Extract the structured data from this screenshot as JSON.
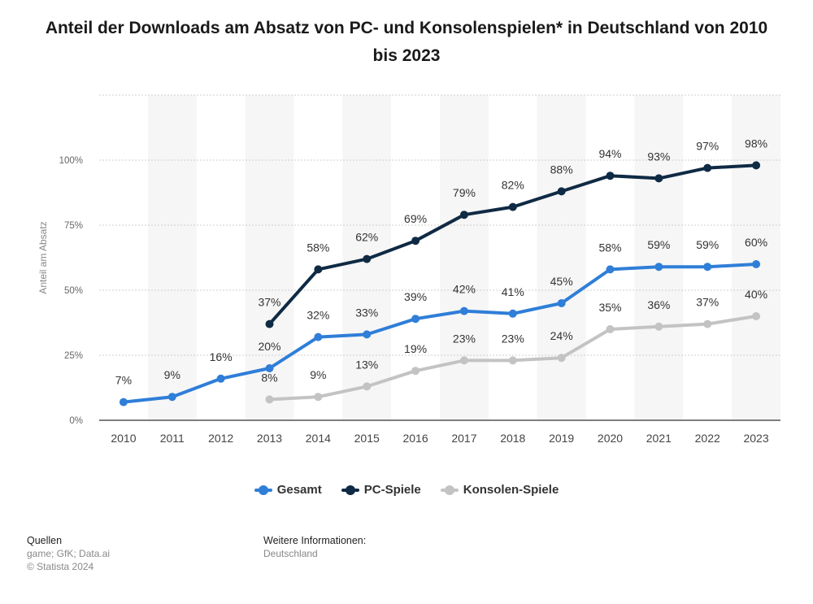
{
  "title": "Anteil der Downloads am Absatz von PC- und Konsolenspielen* in Deutschland von 2010 bis 2023",
  "colors": {
    "gesamt": "#2f7ed8",
    "pc": "#0f2a44",
    "konsolen": "#c3c3c3",
    "grid": "#cfcfcf",
    "band": "#f6f6f6"
  },
  "chart_data": {
    "type": "line",
    "title": "Anteil der Downloads am Absatz von PC- und Konsolenspielen* in Deutschland von 2010 bis 2023",
    "xlabel": "",
    "ylabel": "Anteil am Absatz",
    "ylim": [
      0,
      125
    ],
    "yticks": [
      0,
      25,
      50,
      75,
      100
    ],
    "ytick_labels": [
      "0%",
      "25%",
      "50%",
      "75%",
      "100%"
    ],
    "categories": [
      "2010",
      "2011",
      "2012",
      "2013",
      "2014",
      "2015",
      "2016",
      "2017",
      "2018",
      "2019",
      "2020",
      "2021",
      "2022",
      "2023"
    ],
    "series": [
      {
        "name": "Gesamt",
        "key": "gesamt",
        "values": [
          7,
          9,
          16,
          20,
          32,
          33,
          39,
          42,
          41,
          45,
          58,
          59,
          59,
          60
        ],
        "labels": [
          "7%",
          "9%",
          "16%",
          "20%",
          "32%",
          "33%",
          "39%",
          "42%",
          "41%",
          "45%",
          "58%",
          "59%",
          "59%",
          "60%"
        ]
      },
      {
        "name": "PC-Spiele",
        "key": "pc",
        "values": [
          null,
          null,
          null,
          37,
          58,
          62,
          69,
          79,
          82,
          88,
          94,
          93,
          97,
          98
        ],
        "labels": [
          null,
          null,
          null,
          "37%",
          "58%",
          "62%",
          "69%",
          "79%",
          "82%",
          "88%",
          "94%",
          "93%",
          "97%",
          "98%"
        ]
      },
      {
        "name": "Konsolen-Spiele",
        "key": "konsolen",
        "values": [
          null,
          null,
          null,
          8,
          9,
          13,
          19,
          23,
          23,
          24,
          35,
          36,
          37,
          40
        ],
        "labels": [
          null,
          null,
          null,
          "8%",
          "9%",
          "13%",
          "19%",
          "23%",
          "23%",
          "24%",
          "35%",
          "36%",
          "37%",
          "40%"
        ]
      }
    ],
    "legend_position": "bottom-center"
  },
  "legend": [
    {
      "label": "Gesamt",
      "key": "gesamt"
    },
    {
      "label": "PC-Spiele",
      "key": "pc"
    },
    {
      "label": "Konsolen-Spiele",
      "key": "konsolen"
    }
  ],
  "footer": {
    "sources_title": "Quellen",
    "sources": "game; GfK; Data.ai",
    "copyright": "© Statista 2024",
    "info_title": "Weitere Informationen:",
    "info": "Deutschland"
  }
}
